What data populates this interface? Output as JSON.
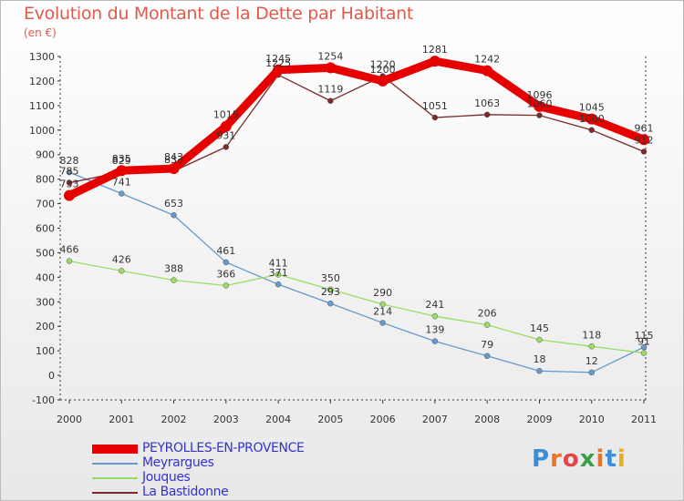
{
  "title": "Evolution du Montant de la Dette par Habitant",
  "subtitle": "(en €)",
  "logo": {
    "text": "Proxiti",
    "colors": [
      "#3a8ed8",
      "#e8742a",
      "#e04848",
      "#3aa04a",
      "#e8742a",
      "#3a8ed8",
      "#e8b020"
    ]
  },
  "chart_data": {
    "type": "line",
    "title": "Evolution du Montant de la Dette par Habitant",
    "ylabel": "(en €)",
    "x": [
      "2000",
      "2001",
      "2002",
      "2003",
      "2004",
      "2005",
      "2006",
      "2007",
      "2008",
      "2009",
      "2010",
      "2011"
    ],
    "ylim": [
      -100,
      1300
    ],
    "yticks": [
      -100,
      0,
      100,
      200,
      300,
      400,
      500,
      600,
      700,
      800,
      900,
      1000,
      1100,
      1200,
      1300
    ],
    "grid": false,
    "legend_placement": "bottom-left",
    "series": [
      {
        "name": "PEYROLLES-EN-PROVENCE",
        "color": "#e60000",
        "values": [
          733,
          835,
          843,
          1015,
          1245,
          1254,
          1200,
          1281,
          1242,
          1096,
          1045,
          961
        ]
      },
      {
        "name": "Meyrargues",
        "color": "#6699cc",
        "values": [
          828,
          741,
          653,
          461,
          371,
          293,
          214,
          139,
          79,
          18,
          12,
          115
        ]
      },
      {
        "name": "Jouques",
        "color": "#99dd66",
        "values": [
          466,
          426,
          388,
          366,
          411,
          350,
          290,
          241,
          206,
          145,
          118,
          91
        ]
      },
      {
        "name": "La Bastidonne",
        "color": "#7a2a2a",
        "values": [
          785,
          829,
          833,
          931,
          1225,
          1119,
          1220,
          1051,
          1063,
          1060,
          1000,
          912
        ]
      }
    ],
    "labels": [
      [
        "733",
        "835",
        "843",
        "1015",
        "1245",
        "1254",
        "1200",
        "1281",
        "1242",
        "1096",
        "1045",
        "961"
      ],
      [
        "828",
        "741",
        "653",
        "461",
        "371",
        "293",
        "214",
        "139",
        "79",
        "18",
        "12",
        "115"
      ],
      [
        "466",
        "426",
        "388",
        "366",
        "411",
        "350",
        "290",
        "241",
        "206",
        "145",
        "118",
        "91"
      ],
      [
        "785",
        "829",
        "833",
        "931",
        "1225",
        "1119",
        "1220",
        "1051",
        "1063",
        "1060",
        "1000",
        "912"
      ]
    ]
  }
}
